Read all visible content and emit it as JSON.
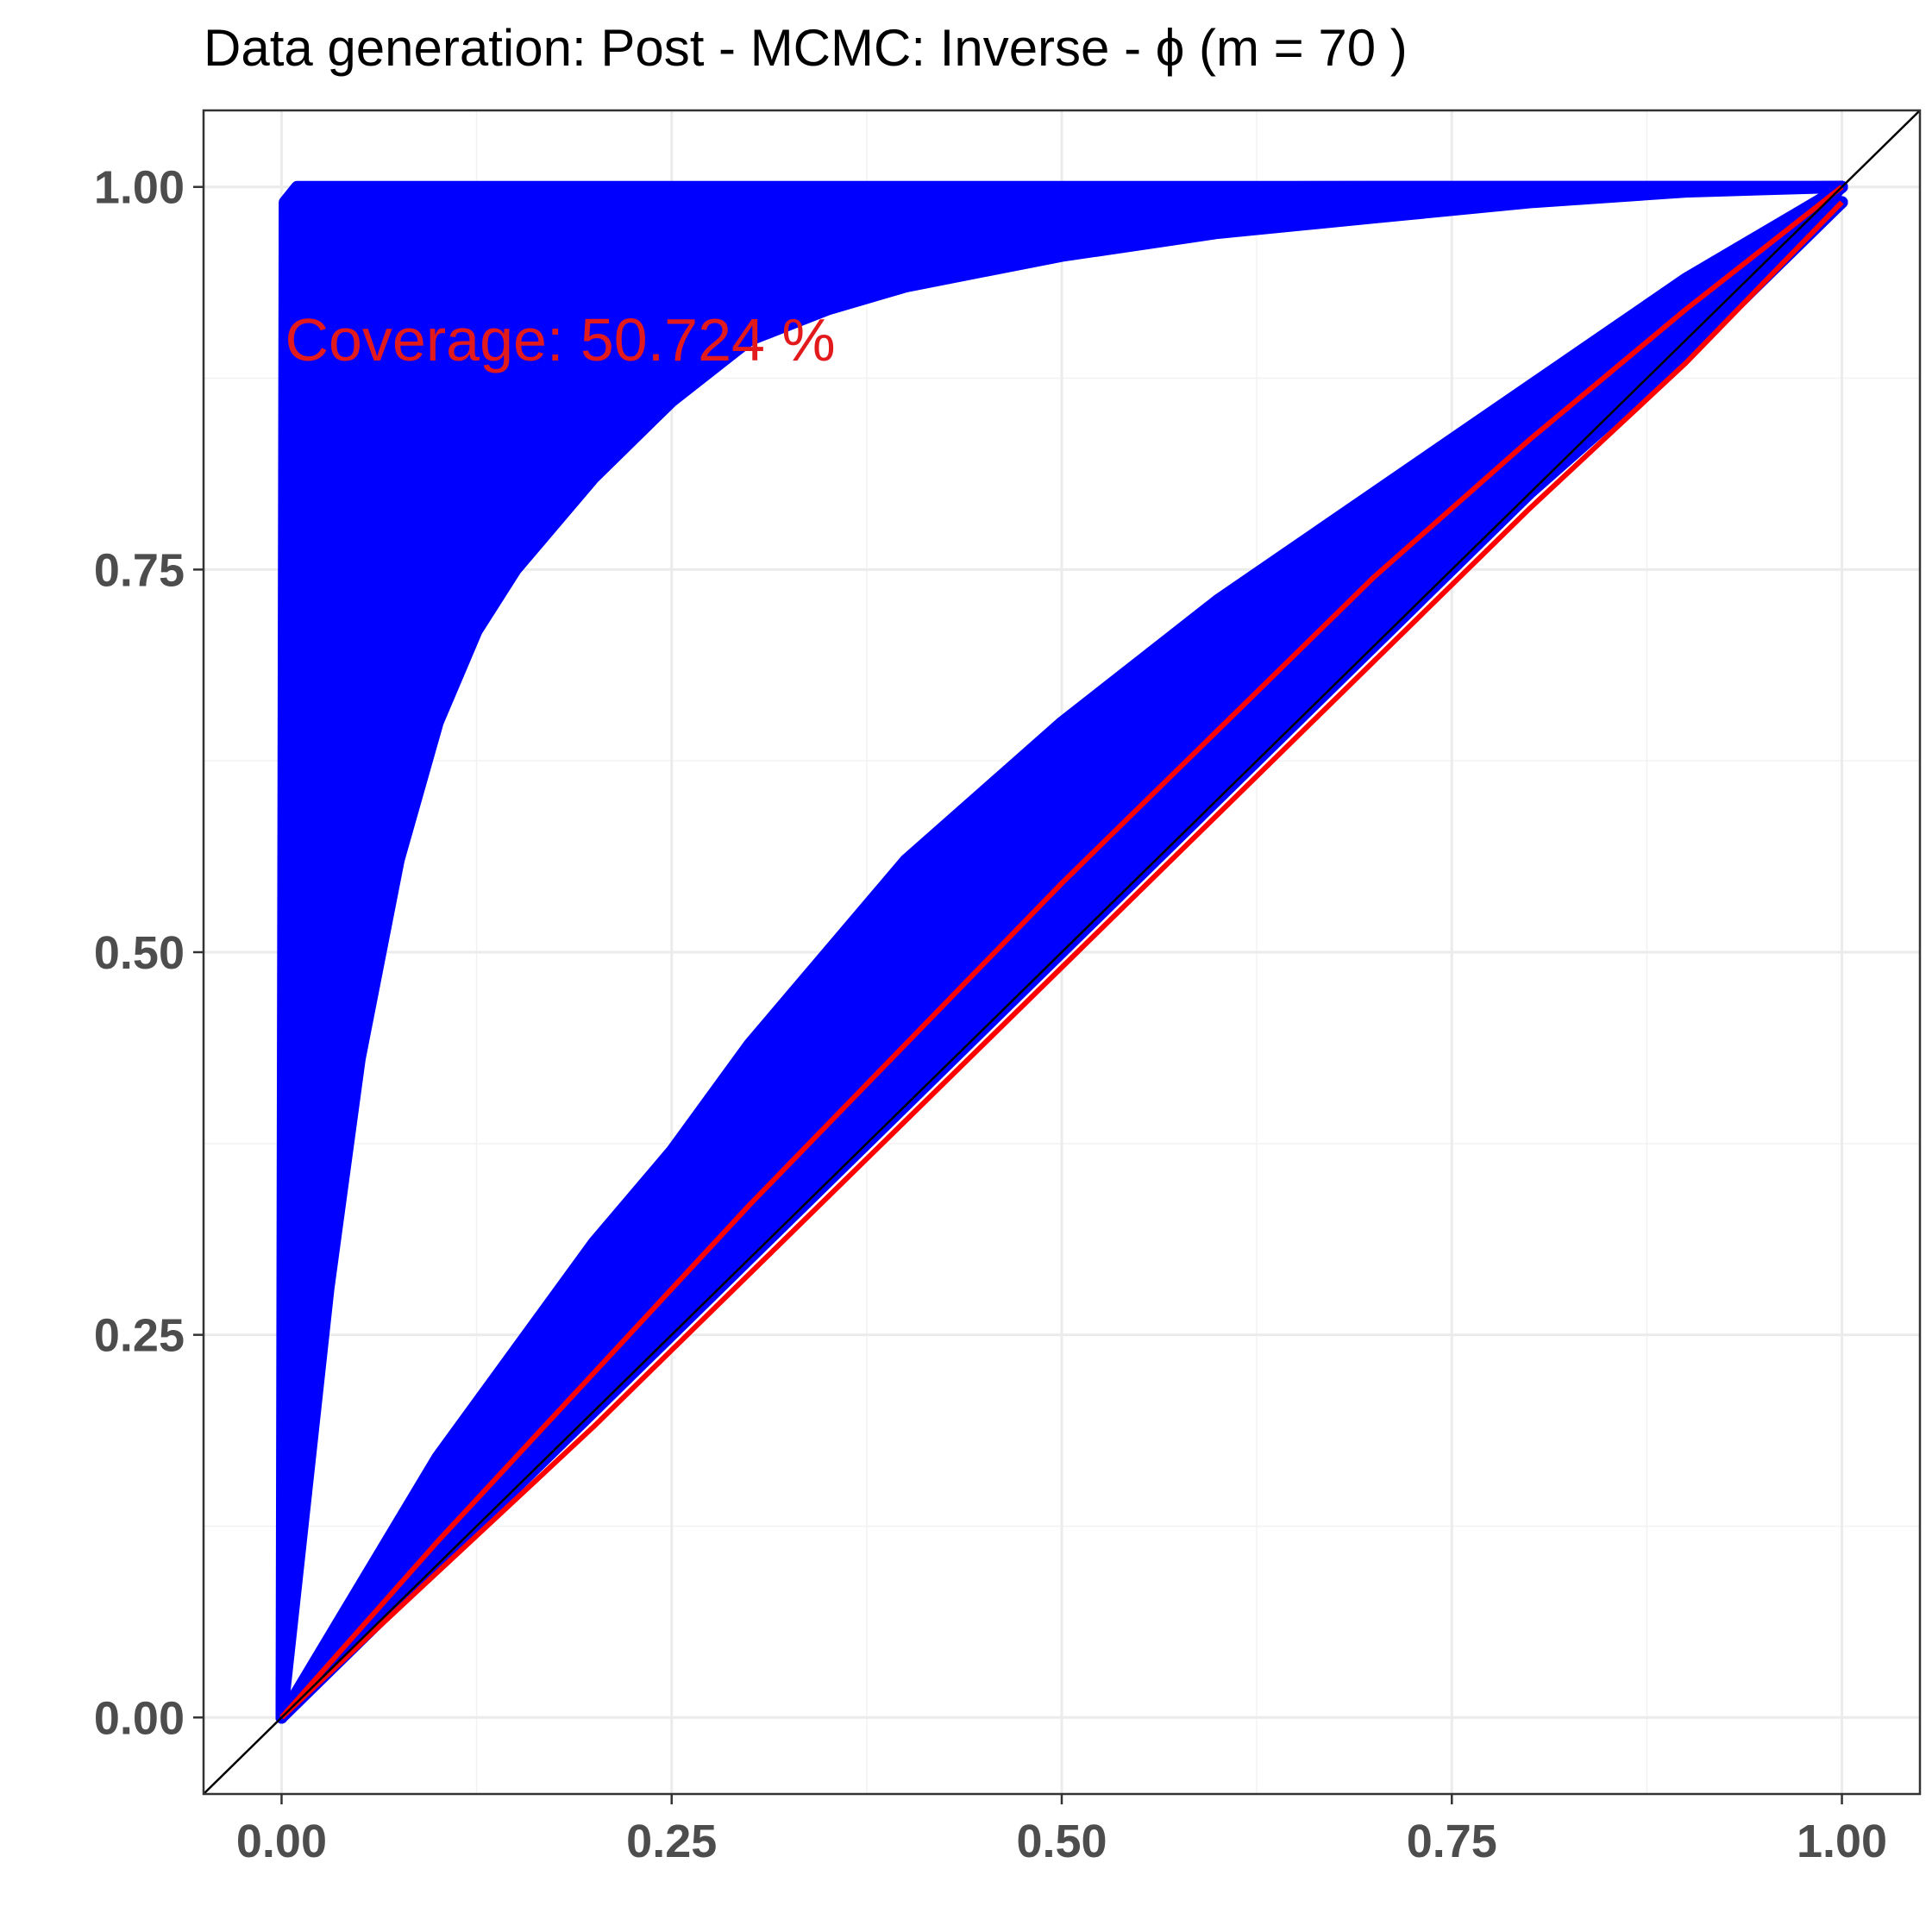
{
  "chart_data": {
    "type": "line",
    "title": "Data generation:  Post - MCMC:  Inverse  -  ϕ  (m =  70 )",
    "xlabel": "",
    "ylabel": "",
    "xlim": [
      -0.05,
      1.05
    ],
    "ylim": [
      -0.05,
      1.05
    ],
    "x_ticks": [
      0.0,
      0.25,
      0.5,
      0.75,
      1.0
    ],
    "y_ticks": [
      0.0,
      0.25,
      0.5,
      0.75,
      1.0
    ],
    "x_tick_labels": [
      "0.00",
      "0.25",
      "0.50",
      "0.75",
      "1.00"
    ],
    "y_tick_labels": [
      "0.00",
      "0.25",
      "0.50",
      "0.75",
      "1.00"
    ],
    "grid": true,
    "annotation": {
      "text": "Coverage:  50.724 %",
      "x": 0.0,
      "y": 0.9,
      "color": "#e31a1c"
    },
    "reference_line": {
      "name": "",
      "color": "#000000",
      "x": [
        -0.05,
        1.05
      ],
      "y": [
        -0.05,
        1.05
      ]
    },
    "series_color": "#0000ff",
    "series": [
      {
        "x": [
          0,
          0.002,
          0.01,
          0.02,
          0.05,
          0.1,
          0.2,
          0.3,
          0.5,
          0.7,
          1.0
        ],
        "y": [
          0,
          0.99,
          1.0,
          1.0,
          1.0,
          1.0,
          1.0,
          1.0,
          1.0,
          1.0,
          1.0
        ]
      },
      {
        "x": [
          0,
          0.005,
          0.01,
          0.02,
          0.04,
          0.06,
          0.1,
          0.2,
          0.4,
          0.7,
          1.0
        ],
        "y": [
          0,
          0.6,
          0.8,
          0.9,
          0.95,
          0.97,
          0.985,
          0.995,
          0.999,
          1.0,
          1.0
        ]
      },
      {
        "x": [
          0,
          0.01,
          0.02,
          0.03,
          0.05,
          0.08,
          0.12,
          0.2,
          0.35,
          0.6,
          1.0
        ],
        "y": [
          0,
          0.5,
          0.65,
          0.75,
          0.85,
          0.91,
          0.95,
          0.975,
          0.99,
          0.998,
          1.0
        ]
      },
      {
        "x": [
          0,
          0.015,
          0.03,
          0.05,
          0.075,
          0.1,
          0.15,
          0.2,
          0.25,
          0.3,
          0.4,
          0.5,
          0.6,
          0.75,
          1.0
        ],
        "y": [
          0,
          0.35,
          0.52,
          0.65,
          0.75,
          0.81,
          0.87,
          0.91,
          0.93,
          0.95,
          0.97,
          0.98,
          0.99,
          0.997,
          1.0
        ]
      },
      {
        "x": [
          0,
          0.03,
          0.05,
          0.075,
          0.1,
          0.125,
          0.15,
          0.2,
          0.25,
          0.3,
          0.35,
          0.4,
          0.5,
          0.6,
          0.7,
          0.8,
          0.9,
          1.0
        ],
        "y": [
          0,
          0.28,
          0.43,
          0.56,
          0.65,
          0.71,
          0.75,
          0.81,
          0.86,
          0.9,
          0.92,
          0.935,
          0.955,
          0.97,
          0.98,
          0.99,
          0.997,
          1.0
        ]
      },
      {
        "x": [
          0,
          0.1,
          0.2,
          0.25,
          0.3,
          0.4,
          0.5,
          0.6,
          0.7,
          0.8,
          0.9,
          1.0
        ],
        "y": [
          0,
          0.17,
          0.31,
          0.37,
          0.44,
          0.56,
          0.65,
          0.73,
          0.8,
          0.87,
          0.94,
          1.0
        ]
      },
      {
        "x": [
          0,
          0.1,
          0.2,
          0.25,
          0.3,
          0.4,
          0.5,
          0.6,
          0.7,
          0.8,
          0.9,
          1.0
        ],
        "y": [
          0,
          0.14,
          0.28,
          0.35,
          0.41,
          0.53,
          0.62,
          0.71,
          0.78,
          0.85,
          0.92,
          1.0
        ]
      },
      {
        "x": [
          0,
          0.1,
          0.2,
          0.3,
          0.4,
          0.5,
          0.6,
          0.7,
          0.8,
          0.9,
          1.0
        ],
        "y": [
          0,
          0.13,
          0.25,
          0.37,
          0.48,
          0.58,
          0.68,
          0.77,
          0.84,
          0.92,
          1.0
        ]
      },
      {
        "x": [
          0,
          0.1,
          0.2,
          0.3,
          0.4,
          0.5,
          0.6,
          0.7,
          0.8,
          0.9,
          1.0
        ],
        "y": [
          0,
          0.12,
          0.23,
          0.34,
          0.45,
          0.55,
          0.65,
          0.75,
          0.83,
          0.91,
          1.0
        ]
      },
      {
        "x": [
          0,
          0.1,
          0.2,
          0.3,
          0.4,
          0.5,
          0.6,
          0.7,
          0.8,
          0.9,
          1.0
        ],
        "y": [
          0,
          0.11,
          0.22,
          0.32,
          0.43,
          0.53,
          0.63,
          0.73,
          0.82,
          0.9,
          0.99
        ]
      },
      {
        "x": [
          0,
          0.1,
          0.2,
          0.3,
          0.4,
          0.5,
          0.6,
          0.7,
          0.8,
          0.9,
          1.0
        ],
        "y": [
          0,
          0.105,
          0.21,
          0.31,
          0.415,
          0.515,
          0.615,
          0.715,
          0.81,
          0.9,
          0.99
        ]
      },
      {
        "x": [
          0,
          0.1,
          0.2,
          0.3,
          0.4,
          0.5,
          0.6,
          0.7,
          0.8,
          0.9,
          1.0
        ],
        "y": [
          0,
          0.1,
          0.2,
          0.3,
          0.4,
          0.5,
          0.6,
          0.7,
          0.8,
          0.89,
          0.99
        ]
      }
    ],
    "red_lines": [
      {
        "color": "#ff0000",
        "x": [
          0,
          0.1,
          0.2,
          0.3,
          0.4,
          0.5,
          0.6,
          0.7,
          0.8,
          0.9,
          1.0
        ],
        "y": [
          0,
          0.115,
          0.225,
          0.335,
          0.44,
          0.545,
          0.645,
          0.745,
          0.835,
          0.92,
          1.0
        ]
      },
      {
        "color": "#ff0000",
        "x": [
          0,
          0.1,
          0.2,
          0.3,
          0.4,
          0.5,
          0.6,
          0.7,
          0.8,
          0.9,
          1.0
        ],
        "y": [
          0,
          0.095,
          0.19,
          0.29,
          0.39,
          0.49,
          0.59,
          0.69,
          0.79,
          0.885,
          0.99
        ]
      }
    ]
  }
}
